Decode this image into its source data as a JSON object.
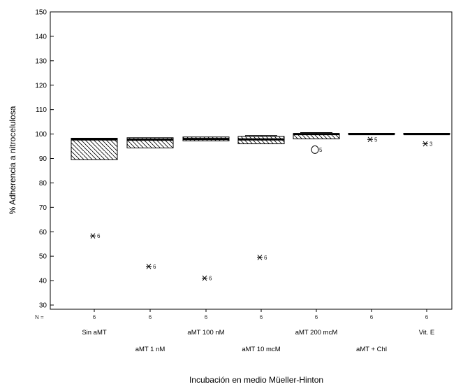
{
  "chart_data": {
    "type": "boxplot",
    "ylabel": "% Adherencia a nitrocelulosa",
    "xlabel": "Incubación en medio Müeller-Hinton",
    "ylim": [
      30,
      150
    ],
    "yticks": [
      "150",
      "140",
      "130",
      "120",
      "110",
      "100",
      "90",
      "80",
      "70",
      "60",
      "50",
      "40",
      "30"
    ],
    "n_prefix": "N =",
    "categories": [
      "Sin aMT",
      "aMT 1 nM",
      "aMT 100 nM",
      "aMT 10 mcM",
      "aMT 200 mcM",
      "aMT + Chl",
      "Vit. E"
    ],
    "n": [
      "6",
      "6",
      "6",
      "6",
      "6",
      "6",
      "6"
    ],
    "boxes": [
      {
        "q1": 89.5,
        "median": 97.8,
        "q3": 98.3,
        "whisker_low": 89.5,
        "whisker_high": 98.3
      },
      {
        "q1": 94.3,
        "median": 97.7,
        "q3": 98.5,
        "whisker_low": 94.3,
        "whisker_high": 98.5
      },
      {
        "q1": 97.2,
        "median": 98.0,
        "q3": 98.8,
        "whisker_low": 97.2,
        "whisker_high": 98.8
      },
      {
        "q1": 96.0,
        "median": 97.8,
        "q3": 99.0,
        "whisker_low": 96.0,
        "whisker_high": 99.4
      },
      {
        "q1": 98.0,
        "median": 100.0,
        "q3": 100.2,
        "whisker_low": 98.0,
        "whisker_high": 100.6
      },
      {
        "q1": 100.0,
        "median": 100.0,
        "q3": 100.3,
        "whisker_low": 100.0,
        "whisker_high": 100.3
      },
      {
        "q1": 100.0,
        "median": 100.0,
        "q3": 100.3,
        "whisker_low": 100.0,
        "whisker_high": 100.3
      }
    ],
    "outliers": [
      {
        "group": 0,
        "y": 58.3,
        "marker": "star",
        "label": "6"
      },
      {
        "group": 1,
        "y": 45.8,
        "marker": "star",
        "label": "6"
      },
      {
        "group": 2,
        "y": 41.0,
        "marker": "star",
        "label": "6"
      },
      {
        "group": 3,
        "y": 49.5,
        "marker": "star",
        "label": "6"
      },
      {
        "group": 4,
        "y": 93.6,
        "marker": "circle",
        "label": "5"
      },
      {
        "group": 5,
        "y": 97.8,
        "marker": "star",
        "label": "5"
      },
      {
        "group": 6,
        "y": 96.0,
        "marker": "star",
        "label": "3"
      }
    ]
  }
}
